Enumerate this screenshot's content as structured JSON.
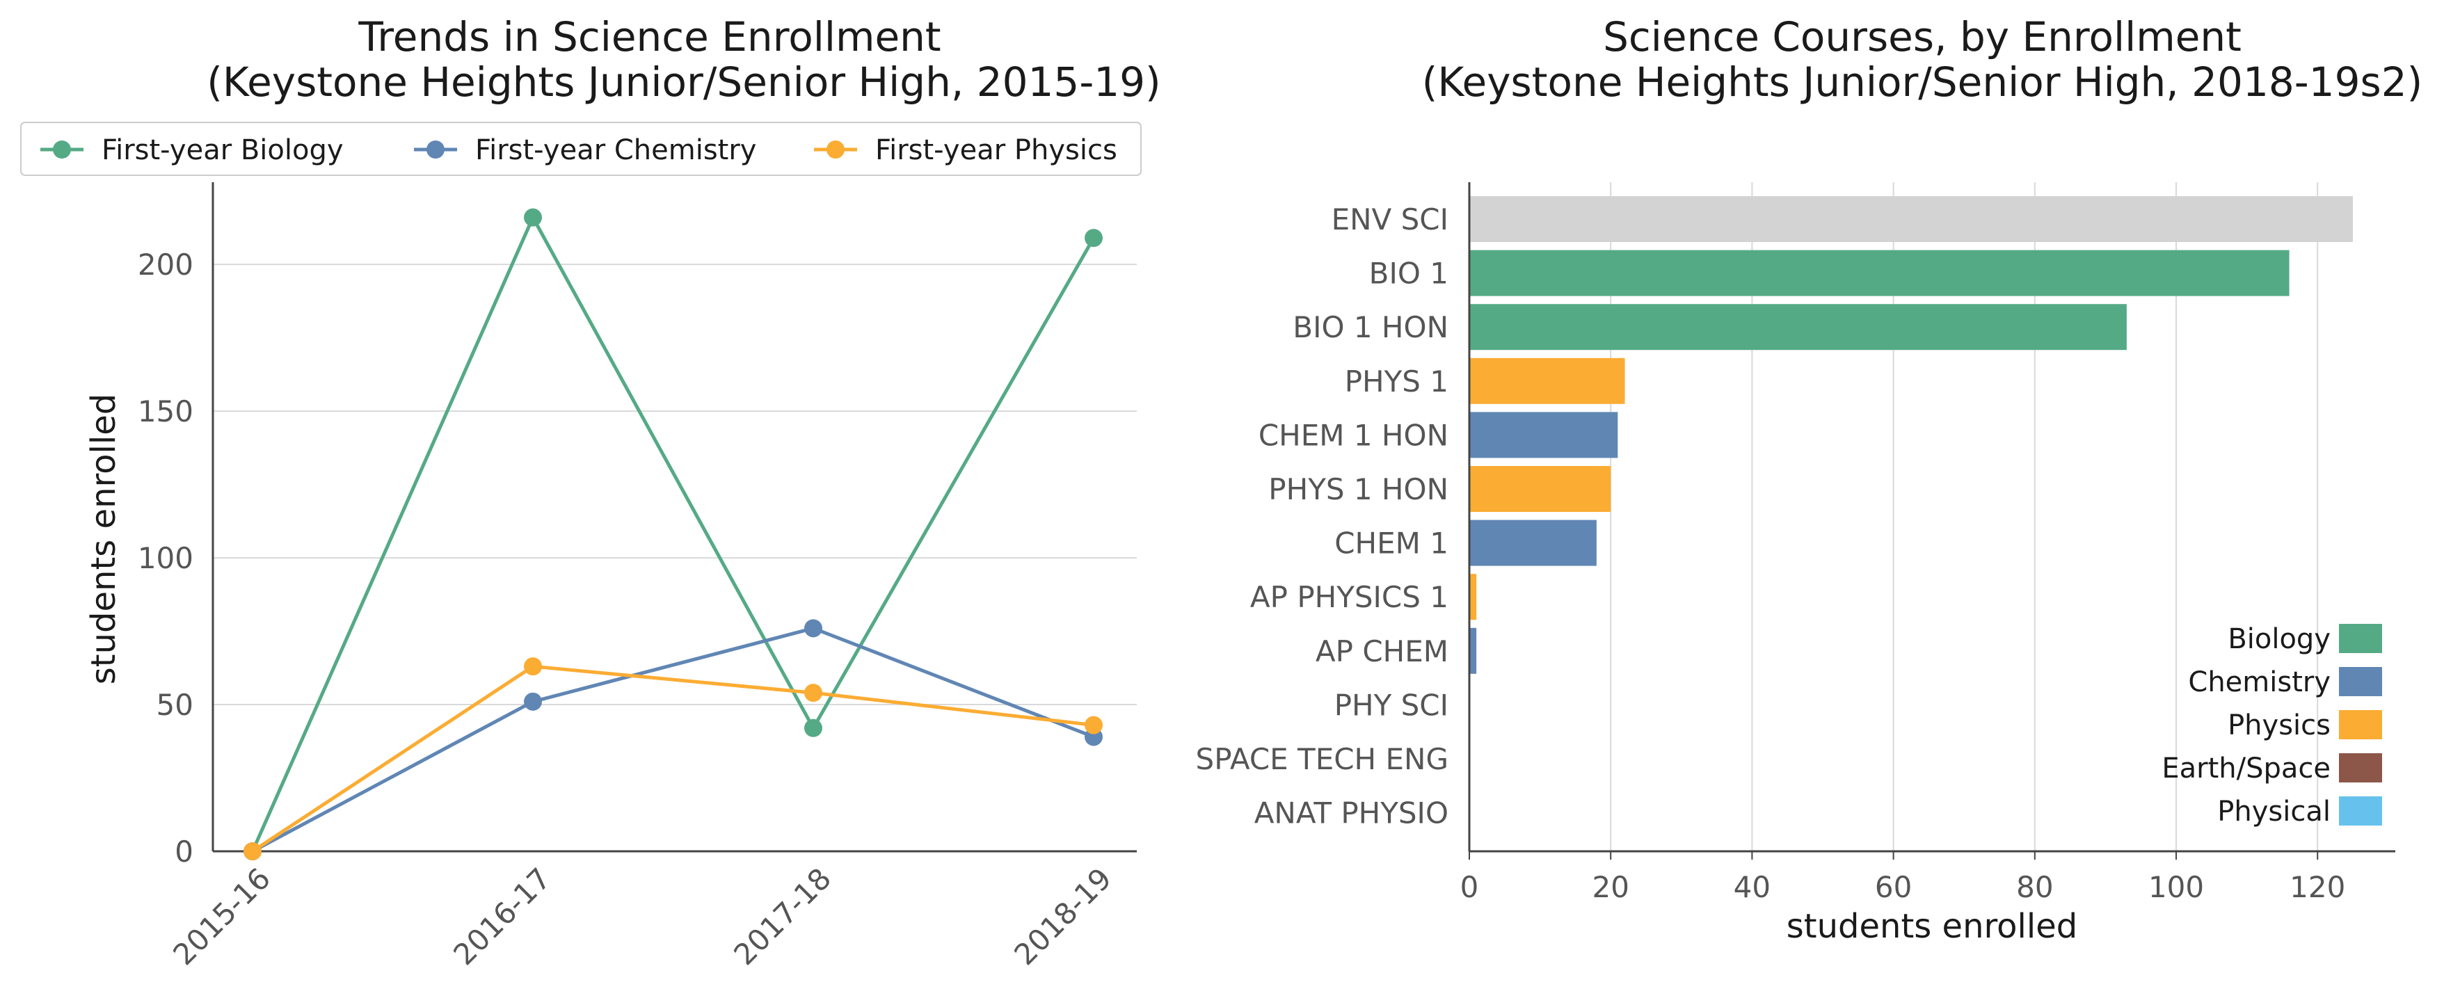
{
  "colors": {
    "Biology": "#55aa86",
    "Chemistry": "#6086b4",
    "Physics": "#fbac33",
    "Earth/Space": "#8c5649",
    "Physical": "#66c1ed",
    "Other": "#d3d3d3"
  },
  "chart_data": [
    {
      "type": "line",
      "title": "Trends in Science Enrollment",
      "subtitle": "(Keystone Heights Junior/Senior High, 2015-19)",
      "xlabel": "",
      "ylabel": "students enrolled",
      "categories": [
        "2015-16",
        "2016-17",
        "2017-18",
        "2018-19"
      ],
      "ylim": [
        0,
        228
      ],
      "yticks": [
        0,
        50,
        100,
        150,
        200
      ],
      "grid": "horizontal",
      "legend": "top",
      "series": [
        {
          "name": "First-year Biology",
          "color": "#55aa86",
          "values": [
            0,
            216,
            42,
            209
          ]
        },
        {
          "name": "First-year Chemistry",
          "color": "#6086b4",
          "values": [
            0,
            51,
            76,
            39
          ]
        },
        {
          "name": "First-year Physics",
          "color": "#fbac33",
          "values": [
            0,
            63,
            54,
            43
          ]
        }
      ]
    },
    {
      "type": "bar",
      "orientation": "horizontal",
      "title": "Science Courses, by Enrollment",
      "subtitle": "(Keystone Heights Junior/Senior High, 2018-19s2)",
      "xlabel": "students enrolled",
      "ylabel": "",
      "xlim": [
        0,
        131
      ],
      "xticks": [
        0,
        20,
        40,
        60,
        80,
        100,
        120
      ],
      "grid": "vertical",
      "legend": "bottom-right",
      "legend_entries": [
        "Biology",
        "Chemistry",
        "Physics",
        "Earth/Space",
        "Physical"
      ],
      "bars": [
        {
          "label": "ENV SCI",
          "value": 125,
          "group": "Other"
        },
        {
          "label": "BIO 1",
          "value": 116,
          "group": "Biology"
        },
        {
          "label": "BIO 1 HON",
          "value": 93,
          "group": "Biology"
        },
        {
          "label": "PHYS 1",
          "value": 22,
          "group": "Physics"
        },
        {
          "label": "CHEM 1 HON",
          "value": 21,
          "group": "Chemistry"
        },
        {
          "label": "PHYS 1 HON",
          "value": 20,
          "group": "Physics"
        },
        {
          "label": "CHEM 1",
          "value": 18,
          "group": "Chemistry"
        },
        {
          "label": "AP PHYSICS 1",
          "value": 1,
          "group": "Physics"
        },
        {
          "label": "AP CHEM",
          "value": 1,
          "group": "Chemistry"
        },
        {
          "label": "PHY SCI",
          "value": 0,
          "group": "Physical"
        },
        {
          "label": "SPACE TECH ENG",
          "value": 0,
          "group": "Earth/Space"
        },
        {
          "label": "ANAT PHYSIO",
          "value": 0,
          "group": "Other"
        }
      ]
    }
  ]
}
